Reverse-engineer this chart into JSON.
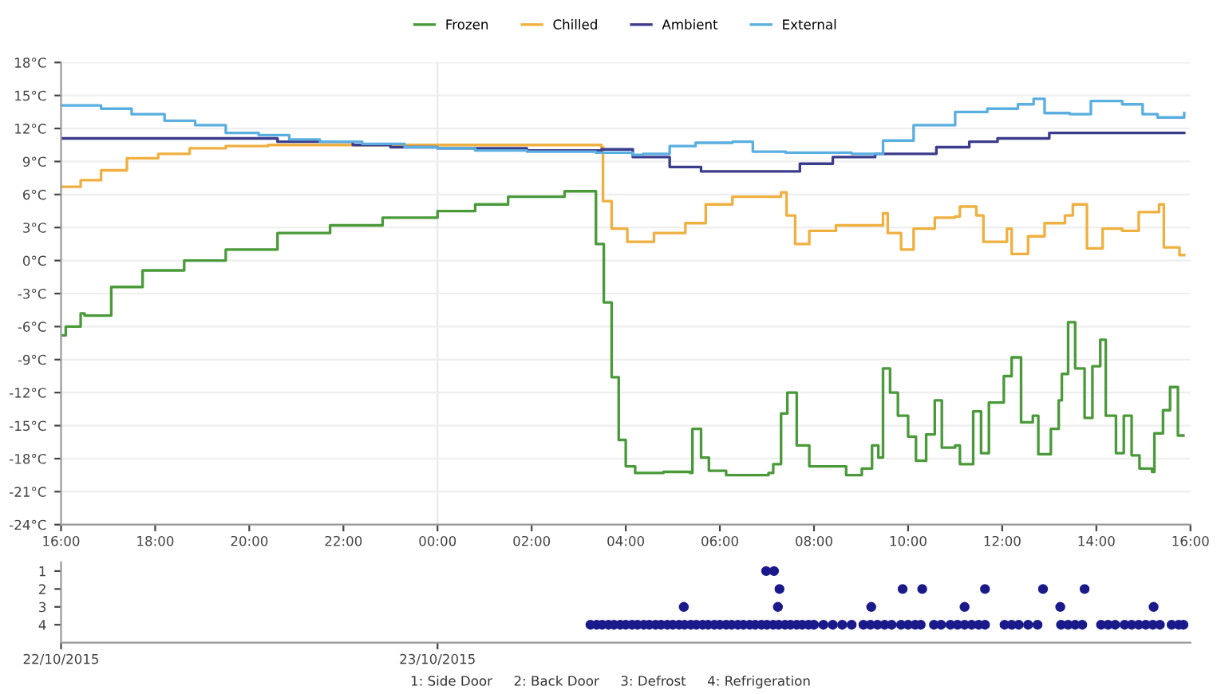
{
  "chart_data": [
    {
      "type": "step",
      "legend": "top",
      "grid": "y",
      "ylim": [
        -24,
        18
      ],
      "yticks": [
        {
          "value": -24,
          "label": "-24°C"
        },
        {
          "value": -21,
          "label": "-21°C"
        },
        {
          "value": -18,
          "label": "-18°C"
        },
        {
          "value": -15,
          "label": "-15°C"
        },
        {
          "value": -12,
          "label": "-12°C"
        },
        {
          "value": -9,
          "label": "-9°C"
        },
        {
          "value": -6,
          "label": "-6°C"
        },
        {
          "value": -3,
          "label": "-3°C"
        },
        {
          "value": 0,
          "label": "0°C"
        },
        {
          "value": 3,
          "label": "3°C"
        },
        {
          "value": 6,
          "label": "6°C"
        },
        {
          "value": 9,
          "label": "9°C"
        },
        {
          "value": 12,
          "label": "12°C"
        },
        {
          "value": 15,
          "label": "15°C"
        },
        {
          "value": 18,
          "label": "18°C"
        }
      ],
      "xlim": [
        "2015-10-22T16:00",
        "2015-10-23T16:00"
      ],
      "xticks": [
        {
          "value": "2015-10-22T16:00",
          "label": "16:00"
        },
        {
          "value": "2015-10-22T18:00",
          "label": "18:00"
        },
        {
          "value": "2015-10-22T20:00",
          "label": "20:00"
        },
        {
          "value": "2015-10-22T22:00",
          "label": "22:00"
        },
        {
          "value": "2015-10-23T00:00",
          "label": "00:00"
        },
        {
          "value": "2015-10-23T02:00",
          "label": "02:00"
        },
        {
          "value": "2015-10-23T04:00",
          "label": "04:00"
        },
        {
          "value": "2015-10-23T06:00",
          "label": "06:00"
        },
        {
          "value": "2015-10-23T08:00",
          "label": "08:00"
        },
        {
          "value": "2015-10-23T10:00",
          "label": "10:00"
        },
        {
          "value": "2015-10-23T12:00",
          "label": "12:00"
        },
        {
          "value": "2015-10-23T14:00",
          "label": "14:00"
        },
        {
          "value": "2015-10-23T16:00",
          "label": "16:00"
        }
      ],
      "ref_lines": [
        {
          "axis": "x",
          "value": "2015-10-23T00:00",
          "color": "#e8e8e8"
        }
      ],
      "series": [
        {
          "name": "Frozen",
          "color": "#4a9a3a",
          "x": [
            "2015-10-22T16:00",
            "2015-10-22T16:06",
            "2015-10-22T16:25",
            "2015-10-22T16:30",
            "2015-10-22T17:04",
            "2015-10-22T17:44",
            "2015-10-22T18:37",
            "2015-10-22T19:30",
            "2015-10-22T20:36",
            "2015-10-22T21:43",
            "2015-10-22T22:50",
            "2015-10-23T00:00",
            "2015-10-23T00:48",
            "2015-10-23T01:30",
            "2015-10-23T02:42",
            "2015-10-23T03:16",
            "2015-10-23T03:22",
            "2015-10-23T03:32",
            "2015-10-23T03:42",
            "2015-10-23T03:51",
            "2015-10-23T04:00",
            "2015-10-23T04:12",
            "2015-10-23T04:48",
            "2015-10-23T05:22",
            "2015-10-23T05:25",
            "2015-10-23T05:36",
            "2015-10-23T05:46",
            "2015-10-23T06:08",
            "2015-10-23T07:02",
            "2015-10-23T07:08",
            "2015-10-23T07:18",
            "2015-10-23T07:26",
            "2015-10-23T07:38",
            "2015-10-23T07:54",
            "2015-10-23T08:41",
            "2015-10-23T09:01",
            "2015-10-23T09:14",
            "2015-10-23T09:22",
            "2015-10-23T09:28",
            "2015-10-23T09:37",
            "2015-10-23T09:47",
            "2015-10-23T10:00",
            "2015-10-23T10:10",
            "2015-10-23T10:23",
            "2015-10-23T10:34",
            "2015-10-23T10:43",
            "2015-10-23T11:00",
            "2015-10-23T11:06",
            "2015-10-23T11:23",
            "2015-10-23T11:33",
            "2015-10-23T11:43",
            "2015-10-23T12:02",
            "2015-10-23T12:12",
            "2015-10-23T12:24",
            "2015-10-23T12:39",
            "2015-10-23T12:46",
            "2015-10-23T13:02",
            "2015-10-23T13:12",
            "2015-10-23T13:16",
            "2015-10-23T13:24",
            "2015-10-23T13:33",
            "2015-10-23T13:45",
            "2015-10-23T13:55",
            "2015-10-23T14:05",
            "2015-10-23T14:12",
            "2015-10-23T14:25",
            "2015-10-23T14:35",
            "2015-10-23T14:45",
            "2015-10-23T14:55",
            "2015-10-23T15:11",
            "2015-10-23T15:14",
            "2015-10-23T15:25",
            "2015-10-23T15:34",
            "2015-10-23T15:44",
            "2015-10-23T15:51"
          ],
          "values": [
            -6.8,
            -6.0,
            -4.8,
            -5.0,
            -2.4,
            -0.9,
            0.0,
            1.0,
            2.5,
            3.2,
            3.9,
            4.5,
            5.1,
            5.8,
            6.3,
            6.3,
            1.5,
            -3.8,
            -10.6,
            -16.3,
            -18.7,
            -19.3,
            -19.2,
            -19.3,
            -15.3,
            -17.9,
            -19.1,
            -19.5,
            -19.3,
            -18.5,
            -13.9,
            -12.0,
            -16.8,
            -18.7,
            -19.5,
            -18.9,
            -16.8,
            -17.9,
            -9.8,
            -12.0,
            -14.1,
            -16.0,
            -18.2,
            -15.8,
            -12.7,
            -17.0,
            -16.8,
            -18.5,
            -13.7,
            -17.5,
            -12.9,
            -10.5,
            -8.8,
            -14.7,
            -14.1,
            -17.6,
            -15.3,
            -12.7,
            -10.3,
            -5.6,
            -9.8,
            -14.3,
            -9.6,
            -7.2,
            -14.1,
            -17.5,
            -14.1,
            -17.7,
            -18.9,
            -19.2,
            -15.7,
            -13.6,
            -11.5,
            -15.9,
            -15.9
          ]
        },
        {
          "name": "Chilled",
          "color": "#f0b040",
          "x": [
            "2015-10-22T16:00",
            "2015-10-22T16:25",
            "2015-10-22T16:51",
            "2015-10-22T17:24",
            "2015-10-22T18:04",
            "2015-10-22T18:44",
            "2015-10-22T19:30",
            "2015-10-22T20:24",
            "2015-10-23T03:29",
            "2015-10-23T03:31",
            "2015-10-23T03:42",
            "2015-10-23T04:02",
            "2015-10-23T04:36",
            "2015-10-23T05:16",
            "2015-10-23T05:42",
            "2015-10-23T06:16",
            "2015-10-23T07:18",
            "2015-10-23T07:25",
            "2015-10-23T07:36",
            "2015-10-23T07:54",
            "2015-10-23T08:28",
            "2015-10-23T09:21",
            "2015-10-23T09:28",
            "2015-10-23T09:34",
            "2015-10-23T09:51",
            "2015-10-23T10:07",
            "2015-10-23T10:34",
            "2015-10-23T11:00",
            "2015-10-23T11:06",
            "2015-10-23T11:27",
            "2015-10-23T11:36",
            "2015-10-23T12:06",
            "2015-10-23T12:12",
            "2015-10-23T12:33",
            "2015-10-23T12:54",
            "2015-10-23T13:20",
            "2015-10-23T13:30",
            "2015-10-23T13:48",
            "2015-10-23T14:08",
            "2015-10-23T14:33",
            "2015-10-23T14:54",
            "2015-10-23T15:20",
            "2015-10-23T15:26",
            "2015-10-23T15:46",
            "2015-10-23T15:52"
          ],
          "values": [
            6.7,
            7.3,
            8.2,
            9.3,
            9.7,
            10.2,
            10.4,
            10.5,
            10.3,
            5.4,
            2.9,
            1.7,
            2.5,
            3.4,
            5.1,
            5.8,
            6.2,
            4.1,
            1.5,
            2.7,
            3.2,
            3.2,
            4.3,
            2.5,
            1.0,
            2.9,
            3.9,
            4.0,
            4.9,
            4.1,
            1.7,
            2.9,
            0.6,
            2.2,
            3.4,
            4.1,
            5.1,
            1.1,
            2.9,
            2.7,
            4.4,
            5.1,
            1.2,
            0.5,
            0.5
          ]
        },
        {
          "name": "Ambient",
          "color": "#3c3c8c",
          "x": [
            "2015-10-22T16:00",
            "2015-10-22T20:36",
            "2015-10-22T22:12",
            "2015-10-22T23:00",
            "2015-10-23T00:00",
            "2015-10-23T01:54",
            "2015-10-23T03:29",
            "2015-10-23T03:48",
            "2015-10-23T04:09",
            "2015-10-23T04:56",
            "2015-10-23T05:36",
            "2015-10-23T07:30",
            "2015-10-23T07:42",
            "2015-10-23T08:24",
            "2015-10-23T09:18",
            "2015-10-23T10:36",
            "2015-10-23T11:18",
            "2015-10-23T11:54",
            "2015-10-23T12:40",
            "2015-10-23T13:00",
            "2015-10-23T15:52"
          ],
          "values": [
            11.1,
            10.8,
            10.5,
            10.3,
            10.2,
            10.0,
            10.1,
            10.1,
            9.4,
            8.5,
            8.1,
            8.1,
            8.8,
            9.4,
            9.7,
            10.3,
            10.8,
            11.1,
            11.1,
            11.6,
            11.6
          ]
        },
        {
          "name": "External",
          "color": "#5aaee0",
          "x": [
            "2015-10-22T16:00",
            "2015-10-22T16:51",
            "2015-10-22T17:30",
            "2015-10-22T18:12",
            "2015-10-22T18:51",
            "2015-10-22T19:30",
            "2015-10-22T20:12",
            "2015-10-22T20:51",
            "2015-10-22T21:30",
            "2015-10-22T22:24",
            "2015-10-22T23:18",
            "2015-10-23T00:00",
            "2015-10-23T00:48",
            "2015-10-23T01:54",
            "2015-10-23T03:22",
            "2015-10-23T04:09",
            "2015-10-23T04:22",
            "2015-10-23T04:56",
            "2015-10-23T05:29",
            "2015-10-23T06:16",
            "2015-10-23T06:42",
            "2015-10-23T07:24",
            "2015-10-23T08:48",
            "2015-10-23T09:28",
            "2015-10-23T10:07",
            "2015-10-23T11:00",
            "2015-10-23T11:41",
            "2015-10-23T12:20",
            "2015-10-23T12:40",
            "2015-10-23T12:54",
            "2015-10-23T13:26",
            "2015-10-23T13:53",
            "2015-10-23T14:33",
            "2015-10-23T14:59",
            "2015-10-23T15:18",
            "2015-10-23T15:52"
          ],
          "values": [
            14.1,
            13.8,
            13.3,
            12.7,
            12.3,
            11.6,
            11.4,
            11.0,
            10.8,
            10.6,
            10.3,
            10.2,
            10.0,
            9.9,
            9.8,
            9.6,
            9.7,
            10.4,
            10.7,
            10.8,
            9.9,
            9.8,
            9.7,
            10.9,
            12.3,
            13.5,
            13.8,
            14.2,
            14.7,
            13.4,
            13.3,
            14.5,
            14.2,
            13.3,
            13.0,
            13.4
          ]
        }
      ]
    },
    {
      "type": "scatter",
      "marker": "circle",
      "ylim": [
        5,
        0.5
      ],
      "yticks": [
        1,
        2,
        3,
        4
      ],
      "xlim": [
        "2015-10-22T16:00",
        "2015-10-23T16:00"
      ],
      "xticks": [
        {
          "value": "2015-10-22T16:00",
          "label": "22/10/2015"
        },
        {
          "value": "2015-10-23T00:00",
          "label": "23/10/2015"
        }
      ],
      "annotations": [
        "1: Side Door     2: Back Door     3: Defrost     4: Refrigeration"
      ],
      "series": [
        {
          "color": "#1a1a8a",
          "x": [
            "2015-10-23T03:15",
            "2015-10-23T03:23",
            "2015-10-23T03:30",
            "2015-10-23T03:38",
            "2015-10-23T03:45",
            "2015-10-23T03:53",
            "2015-10-23T04:00",
            "2015-10-23T04:08",
            "2015-10-23T04:15",
            "2015-10-23T04:23",
            "2015-10-23T04:30",
            "2015-10-23T04:38",
            "2015-10-23T04:45",
            "2015-10-23T04:53",
            "2015-10-23T05:00",
            "2015-10-23T05:08",
            "2015-10-23T05:15",
            "2015-10-23T05:23",
            "2015-10-23T05:30",
            "2015-10-23T05:38",
            "2015-10-23T05:45",
            "2015-10-23T05:53",
            "2015-10-23T06:00",
            "2015-10-23T06:08",
            "2015-10-23T06:15",
            "2015-10-23T06:23",
            "2015-10-23T06:30",
            "2015-10-23T06:38",
            "2015-10-23T06:45",
            "2015-10-23T06:53",
            "2015-10-23T07:00",
            "2015-10-23T07:08",
            "2015-10-23T07:15",
            "2015-10-23T07:23",
            "2015-10-23T07:30",
            "2015-10-23T07:38",
            "2015-10-23T07:45",
            "2015-10-23T07:53",
            "2015-10-23T08:00",
            "2015-10-23T08:12",
            "2015-10-23T08:24",
            "2015-10-23T08:36",
            "2015-10-23T08:48",
            "2015-10-23T09:03",
            "2015-10-23T09:12",
            "2015-10-23T09:21",
            "2015-10-23T09:30",
            "2015-10-23T09:39",
            "2015-10-23T09:51",
            "2015-10-23T10:00",
            "2015-10-23T10:09",
            "2015-10-23T10:16",
            "2015-10-23T10:33",
            "2015-10-23T10:42",
            "2015-10-23T10:54",
            "2015-10-23T11:03",
            "2015-10-23T11:12",
            "2015-10-23T11:21",
            "2015-10-23T11:30",
            "2015-10-23T11:38",
            "2015-10-23T12:03",
            "2015-10-23T12:12",
            "2015-10-23T12:21",
            "2015-10-23T12:33",
            "2015-10-23T12:45",
            "2015-10-23T13:15",
            "2015-10-23T13:24",
            "2015-10-23T13:33",
            "2015-10-23T13:42",
            "2015-10-23T14:06",
            "2015-10-23T14:15",
            "2015-10-23T14:24",
            "2015-10-23T14:36",
            "2015-10-23T14:45",
            "2015-10-23T14:54",
            "2015-10-23T15:03",
            "2015-10-23T15:12",
            "2015-10-23T15:21",
            "2015-10-23T15:36",
            "2015-10-23T15:45",
            "2015-10-23T15:51",
            "2015-10-23T05:14",
            "2015-10-23T07:14",
            "2015-10-23T09:13",
            "2015-10-23T11:12",
            "2015-10-23T13:14",
            "2015-10-23T15:13",
            "2015-10-23T07:16",
            "2015-10-23T09:53",
            "2015-10-23T10:18",
            "2015-10-23T11:38",
            "2015-10-23T12:52",
            "2015-10-23T13:45",
            "2015-10-23T06:59",
            "2015-10-23T07:09"
          ],
          "values": [
            4,
            4,
            4,
            4,
            4,
            4,
            4,
            4,
            4,
            4,
            4,
            4,
            4,
            4,
            4,
            4,
            4,
            4,
            4,
            4,
            4,
            4,
            4,
            4,
            4,
            4,
            4,
            4,
            4,
            4,
            4,
            4,
            4,
            4,
            4,
            4,
            4,
            4,
            4,
            4,
            4,
            4,
            4,
            4,
            4,
            4,
            4,
            4,
            4,
            4,
            4,
            4,
            4,
            4,
            4,
            4,
            4,
            4,
            4,
            4,
            4,
            4,
            4,
            4,
            4,
            4,
            4,
            4,
            4,
            4,
            4,
            4,
            4,
            4,
            4,
            4,
            4,
            4,
            4,
            4,
            4,
            3,
            3,
            3,
            3,
            3,
            3,
            2,
            2,
            2,
            2,
            2,
            2,
            1,
            1
          ]
        }
      ]
    }
  ]
}
